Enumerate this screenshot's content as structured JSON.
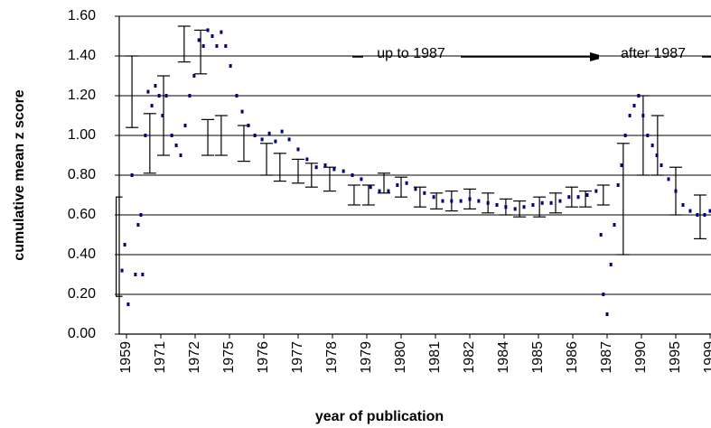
{
  "chart_data": {
    "type": "scatter",
    "x_label": "year of publication",
    "y_label": "cumulative mean z score",
    "annotations": [
      "up to 1987",
      "after 1987"
    ],
    "color": "#000080",
    "grid": true,
    "xlim": [
      -0.3,
      17
    ],
    "xticks": [
      {
        "value": 0,
        "label": "1959"
      },
      {
        "value": 1,
        "label": "1971"
      },
      {
        "value": 2,
        "label": "1972"
      },
      {
        "value": 3,
        "label": "1975"
      },
      {
        "value": 4,
        "label": "1976"
      },
      {
        "value": 5,
        "label": "1977"
      },
      {
        "value": 6,
        "label": "1978"
      },
      {
        "value": 7,
        "label": "1979"
      },
      {
        "value": 8,
        "label": "1980"
      },
      {
        "value": 9,
        "label": "1981"
      },
      {
        "value": 10,
        "label": "1982"
      },
      {
        "value": 11,
        "label": "1984"
      },
      {
        "value": 12,
        "label": "1985"
      },
      {
        "value": 13,
        "label": "1986"
      },
      {
        "value": 14,
        "label": "1987"
      },
      {
        "value": 15,
        "label": "1990"
      },
      {
        "value": 16,
        "label": "1995"
      },
      {
        "value": 17,
        "label": "1999"
      }
    ],
    "ylim": [
      0,
      1.6
    ],
    "yticks": [
      {
        "value": 0,
        "label": "0.00"
      },
      {
        "value": 0.2,
        "label": "0.20"
      },
      {
        "value": 0.4,
        "label": "0.40"
      },
      {
        "value": 0.6,
        "label": "0.60"
      },
      {
        "value": 0.8,
        "label": "0.80"
      },
      {
        "value": 1.0,
        "label": "1.00"
      },
      {
        "value": 1.2,
        "label": "1.20"
      },
      {
        "value": 1.4,
        "label": "1.40"
      },
      {
        "value": 1.6,
        "label": "1.60"
      }
    ],
    "x": [
      -0.13,
      -0.05,
      0.05,
      0.16,
      0.26,
      0.34,
      0.42,
      0.47,
      0.55,
      0.63,
      0.74,
      0.84,
      0.95,
      1.05,
      1.16,
      1.32,
      1.45,
      1.58,
      1.71,
      1.84,
      1.97,
      2.11,
      2.24,
      2.37,
      2.5,
      2.63,
      2.76,
      2.89,
      3.03,
      3.21,
      3.37,
      3.55,
      3.74,
      3.95,
      4.16,
      4.34,
      4.53,
      4.74,
      5.0,
      5.26,
      5.53,
      5.79,
      6.05,
      6.32,
      6.58,
      6.84,
      7.11,
      7.37,
      7.63,
      7.89,
      8.16,
      8.42,
      8.68,
      8.95,
      9.21,
      9.47,
      9.74,
      10.0,
      10.26,
      10.53,
      10.79,
      11.05,
      11.32,
      11.58,
      11.84,
      12.11,
      12.37,
      12.63,
      12.89,
      13.16,
      13.42,
      13.68,
      13.82,
      13.89,
      14.0,
      14.11,
      14.21,
      14.32,
      14.42,
      14.53,
      14.66,
      14.79,
      14.92,
      15.05,
      15.18,
      15.32,
      15.45,
      15.58,
      15.79,
      16.0,
      16.21,
      16.42,
      16.63,
      16.84,
      17.0
    ],
    "values": [
      0.32,
      0.45,
      0.15,
      0.8,
      0.3,
      0.55,
      0.6,
      0.3,
      1.0,
      1.22,
      1.15,
      1.25,
      1.2,
      1.1,
      1.2,
      1.0,
      0.95,
      0.9,
      1.05,
      1.2,
      1.3,
      1.48,
      1.45,
      1.53,
      1.5,
      1.45,
      1.52,
      1.45,
      1.35,
      1.2,
      1.12,
      1.05,
      1.0,
      0.98,
      1.01,
      0.97,
      1.02,
      0.98,
      0.93,
      0.88,
      0.84,
      0.85,
      0.83,
      0.82,
      0.8,
      0.78,
      0.74,
      0.72,
      0.72,
      0.75,
      0.76,
      0.73,
      0.71,
      0.69,
      0.67,
      0.67,
      0.67,
      0.68,
      0.67,
      0.66,
      0.65,
      0.64,
      0.63,
      0.64,
      0.65,
      0.66,
      0.66,
      0.67,
      0.69,
      0.69,
      0.7,
      0.72,
      0.5,
      0.2,
      0.1,
      0.35,
      0.55,
      0.75,
      0.85,
      1.0,
      1.1,
      1.15,
      1.2,
      1.1,
      1.0,
      0.95,
      0.9,
      0.85,
      0.78,
      0.72,
      0.65,
      0.62,
      0.6,
      0.6,
      0.62
    ],
    "error_bars": {
      "x": [
        -0.3,
        0.16,
        0.68,
        1.08,
        1.68,
        2.16,
        2.37,
        2.76,
        3.42,
        4.08,
        4.47,
        5.0,
        5.39,
        5.92,
        6.63,
        7.05,
        7.5,
        8.0,
        8.55,
        9.03,
        9.47,
        10.0,
        10.53,
        11.05,
        11.45,
        12.03,
        12.5,
        12.97,
        13.37,
        13.89,
        14.47,
        15.05,
        15.47,
        16.0,
        16.71
      ],
      "values": [
        0.44,
        1.22,
        0.96,
        1.1,
        1.46,
        1.42,
        0.99,
        1.0,
        0.96,
        0.88,
        0.84,
        0.82,
        0.8,
        0.78,
        0.7,
        0.7,
        0.76,
        0.74,
        0.69,
        0.67,
        0.67,
        0.68,
        0.66,
        0.64,
        0.63,
        0.64,
        0.66,
        0.69,
        0.68,
        0.7,
        0.68,
        1.0,
        0.95,
        0.72,
        0.59
      ],
      "errors": [
        0.25,
        0.18,
        0.15,
        0.2,
        0.09,
        0.11,
        0.09,
        0.1,
        0.09,
        0.08,
        0.07,
        0.06,
        0.06,
        0.06,
        0.05,
        0.05,
        0.05,
        0.05,
        0.05,
        0.04,
        0.05,
        0.05,
        0.05,
        0.04,
        0.04,
        0.05,
        0.05,
        0.05,
        0.04,
        0.05,
        0.28,
        0.2,
        0.15,
        0.12,
        0.11
      ]
    }
  }
}
